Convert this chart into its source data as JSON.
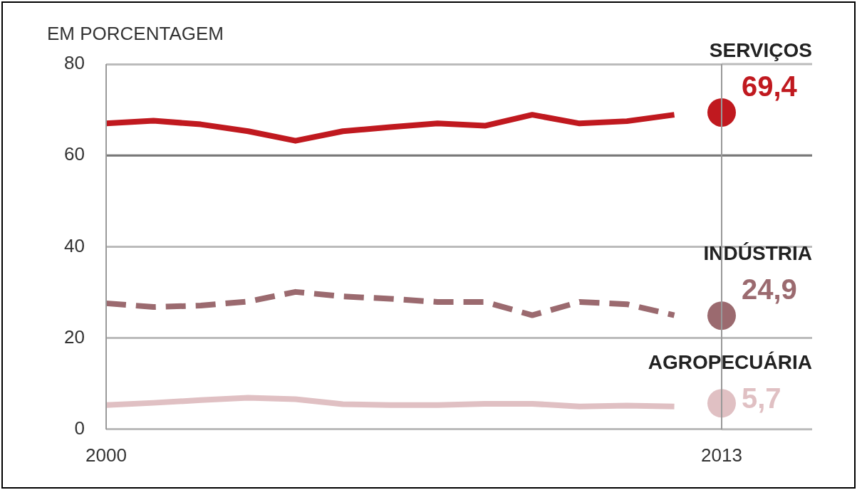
{
  "chart_data": {
    "type": "line",
    "ylabel": "EM PORCENTAGEM",
    "categories": [
      "2000",
      null,
      null,
      null,
      null,
      null,
      null,
      null,
      null,
      null,
      null,
      null,
      null,
      "2013"
    ],
    "ylim": [
      0,
      80
    ],
    "yticks": [
      0,
      20,
      40,
      60,
      80
    ],
    "grid": "y",
    "legend": false,
    "ref_lines": [
      {
        "axis": "y",
        "value": 60,
        "color": "#777777"
      }
    ],
    "series": [
      {
        "color": "#c0191f",
        "line_style": "solid",
        "values": [
          67.0,
          67.6,
          66.8,
          65.3,
          63.2,
          65.3,
          66.2,
          67.0,
          66.5,
          68.9,
          67.0,
          67.5,
          68.9,
          null
        ]
      },
      {
        "color": "#9b6a6f",
        "line_style": "dashed",
        "values": [
          27.6,
          26.8,
          27.1,
          28.0,
          30.1,
          29.1,
          28.6,
          27.9,
          27.9,
          25.0,
          27.9,
          27.4,
          25.0,
          null
        ]
      },
      {
        "color": "#e0c0c3",
        "line_style": "solid",
        "values": [
          5.3,
          5.8,
          6.4,
          6.9,
          6.6,
          5.5,
          5.3,
          5.3,
          5.6,
          5.6,
          5.0,
          5.2,
          5.0,
          null
        ]
      },
      {
        "type": "scatter",
        "name": "SERVIÇOS",
        "color": "#c0191f",
        "values": [
          null,
          null,
          null,
          null,
          null,
          null,
          null,
          null,
          null,
          null,
          null,
          null,
          null,
          69.4
        ],
        "value_labels": [
          null,
          null,
          null,
          null,
          null,
          null,
          null,
          null,
          null,
          null,
          null,
          null,
          null,
          "69,4"
        ]
      },
      {
        "type": "scatter",
        "name": "INDÚSTRIA",
        "color": "#9b6a6f",
        "values": [
          null,
          null,
          null,
          null,
          null,
          null,
          null,
          null,
          null,
          null,
          null,
          null,
          null,
          24.9
        ],
        "value_labels": [
          null,
          null,
          null,
          null,
          null,
          null,
          null,
          null,
          null,
          null,
          null,
          null,
          null,
          "24,9"
        ]
      },
      {
        "type": "scatter",
        "name": "AGROPECUÁRIA",
        "color": "#e0c0c3",
        "values": [
          null,
          null,
          null,
          null,
          null,
          null,
          null,
          null,
          null,
          null,
          null,
          null,
          null,
          5.7
        ],
        "value_labels": [
          null,
          null,
          null,
          null,
          null,
          null,
          null,
          null,
          null,
          null,
          null,
          null,
          null,
          "5,7"
        ]
      }
    ]
  }
}
